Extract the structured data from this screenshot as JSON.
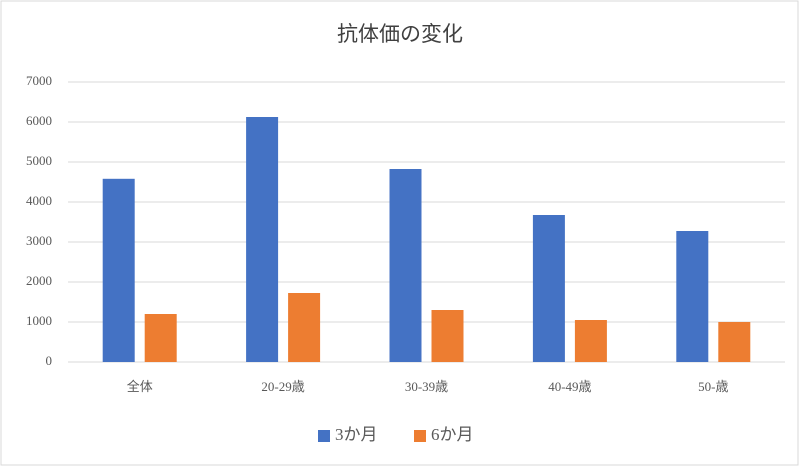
{
  "chart_data": {
    "type": "bar",
    "title": "抗体価の変化",
    "categories": [
      "全体",
      "20-29歳",
      "30-39歳",
      "40-49歳",
      "50-歳"
    ],
    "series": [
      {
        "name": "3か月",
        "color": "#4472c4",
        "values": [
          4580,
          6125,
          4825,
          3675,
          3275
        ]
      },
      {
        "name": "6か月",
        "color": "#ed7d31",
        "values": [
          1200,
          1725,
          1300,
          1050,
          1000
        ]
      }
    ],
    "ylim": [
      0,
      7000
    ],
    "yticks": [
      0,
      1000,
      2000,
      3000,
      4000,
      5000,
      6000,
      7000
    ],
    "grid": true,
    "legend": "bottom"
  }
}
